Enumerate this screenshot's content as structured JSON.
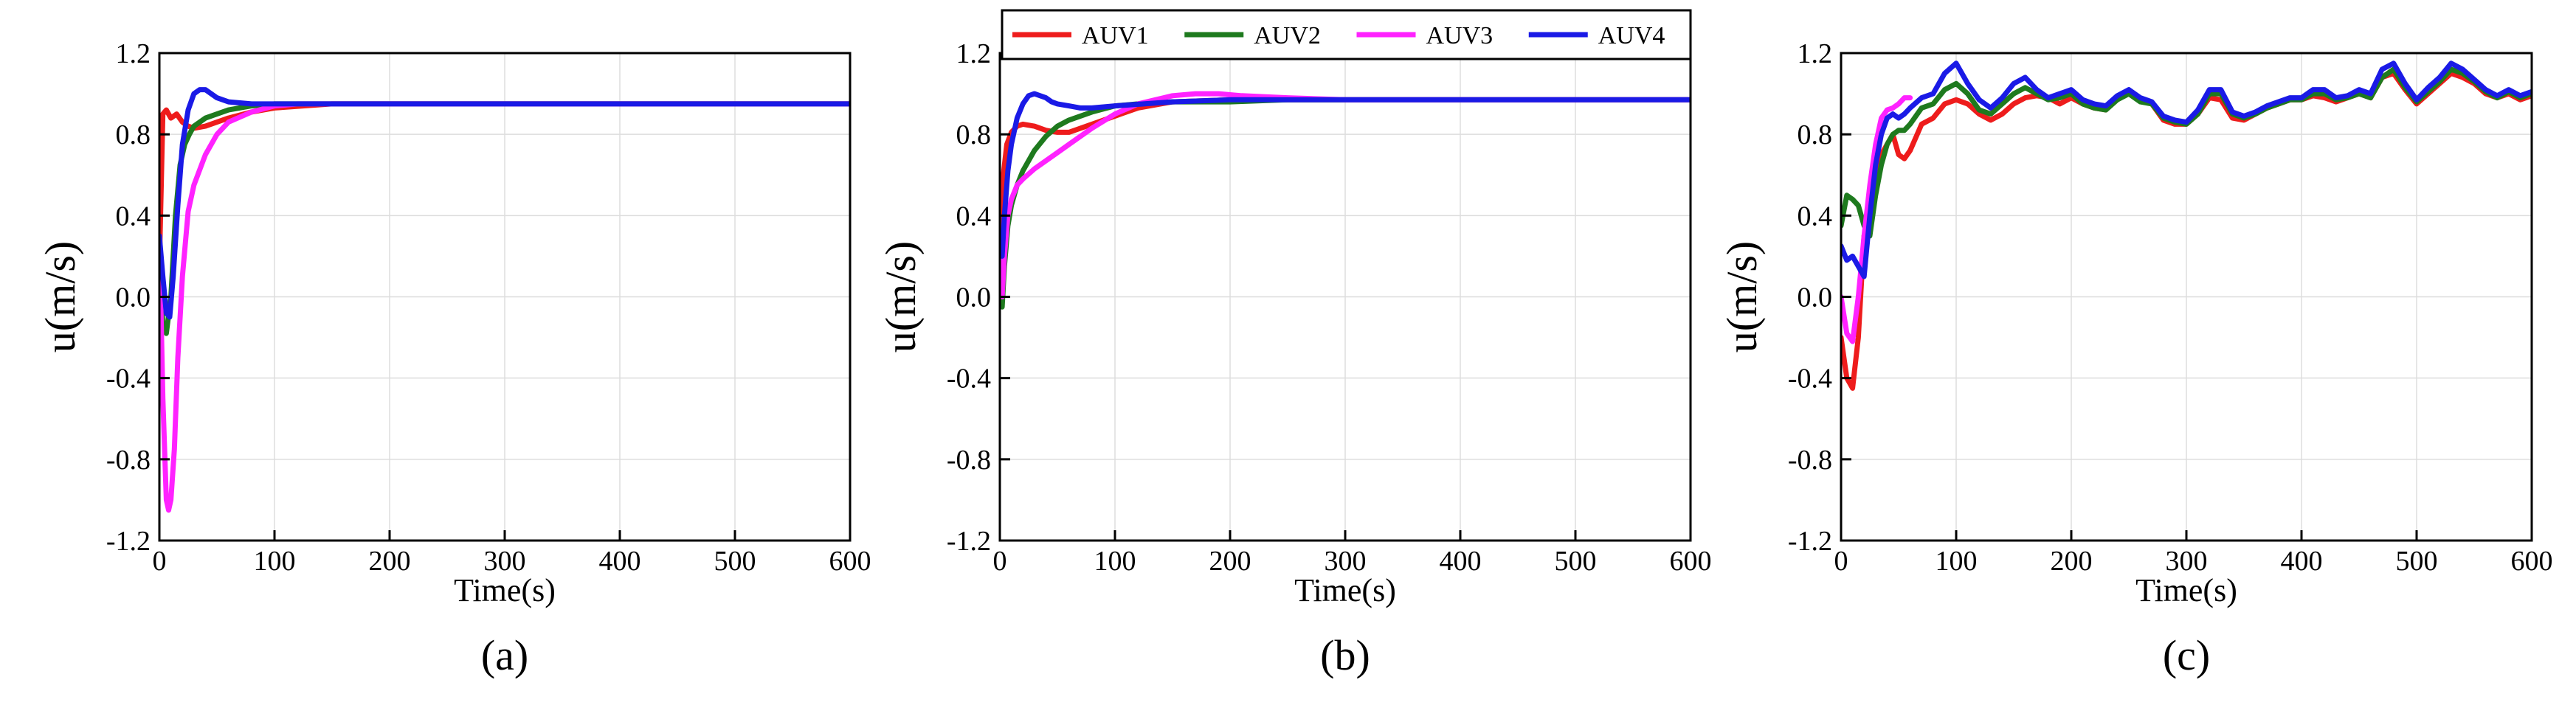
{
  "figure": {
    "series_names": [
      "AUV1",
      "AUV2",
      "AUV3",
      "AUV4"
    ],
    "series_colors": [
      "#ee1c1c",
      "#1e7a1e",
      "#ff22ff",
      "#1a1ae6"
    ]
  },
  "chart_data": [
    {
      "type": "line",
      "panel_label": "(a)",
      "xlabel": "Time(s)",
      "ylabel": "u(m/s)",
      "xlim": [
        0,
        600
      ],
      "ylim": [
        -1.2,
        1.2
      ],
      "xticks": [
        0,
        100,
        200,
        300,
        400,
        500,
        600
      ],
      "yticks": [
        -1.2,
        -0.8,
        -0.4,
        0.0,
        0.4,
        0.8,
        1.2
      ],
      "xtick_labels": [
        "0",
        "100",
        "200",
        "300",
        "400",
        "500",
        "600"
      ],
      "ytick_labels": [
        "-1.2",
        "-0.8",
        "-0.4",
        "0.0",
        "0.4",
        "0.8",
        "1.2"
      ],
      "grid": true,
      "legend": null,
      "series": [
        {
          "name": "AUV1",
          "x": [
            0,
            3,
            6,
            10,
            15,
            20,
            25,
            30,
            40,
            50,
            60,
            80,
            100,
            150,
            200,
            300,
            400,
            500,
            600
          ],
          "y": [
            0.15,
            0.9,
            0.92,
            0.88,
            0.9,
            0.86,
            0.84,
            0.83,
            0.84,
            0.86,
            0.88,
            0.91,
            0.93,
            0.95,
            0.95,
            0.95,
            0.95,
            0.95,
            0.95
          ]
        },
        {
          "name": "AUV2",
          "x": [
            0,
            3,
            6,
            10,
            14,
            18,
            22,
            26,
            30,
            40,
            50,
            60,
            80,
            100,
            150,
            200,
            300,
            400,
            500,
            600
          ],
          "y": [
            0.3,
            -0.15,
            -0.18,
            0.0,
            0.4,
            0.65,
            0.75,
            0.8,
            0.84,
            0.88,
            0.9,
            0.92,
            0.94,
            0.95,
            0.95,
            0.95,
            0.95,
            0.95,
            0.95,
            0.95
          ]
        },
        {
          "name": "AUV3",
          "x": [
            0,
            3,
            6,
            8,
            10,
            13,
            16,
            20,
            25,
            30,
            40,
            50,
            60,
            80,
            100,
            120,
            150,
            200,
            300,
            400,
            500,
            600
          ],
          "y": [
            0.3,
            -0.5,
            -1.0,
            -1.05,
            -1.0,
            -0.75,
            -0.3,
            0.1,
            0.42,
            0.55,
            0.7,
            0.8,
            0.86,
            0.91,
            0.94,
            0.95,
            0.95,
            0.95,
            0.95,
            0.95,
            0.95,
            0.95
          ]
        },
        {
          "name": "AUV4",
          "x": [
            0,
            3,
            6,
            9,
            12,
            16,
            20,
            25,
            30,
            35,
            40,
            45,
            50,
            60,
            80,
            100,
            150,
            200,
            300,
            400,
            500,
            600
          ],
          "y": [
            0.3,
            0.1,
            -0.08,
            -0.1,
            0.1,
            0.45,
            0.75,
            0.92,
            1.0,
            1.02,
            1.02,
            1.0,
            0.98,
            0.96,
            0.95,
            0.95,
            0.95,
            0.95,
            0.95,
            0.95,
            0.95,
            0.95
          ]
        }
      ]
    },
    {
      "type": "line",
      "panel_label": "(b)",
      "xlabel": "Time(s)",
      "ylabel": "u(m/s)",
      "xlim": [
        0,
        600
      ],
      "ylim": [
        -1.2,
        1.2
      ],
      "xticks": [
        0,
        100,
        200,
        300,
        400,
        500,
        600
      ],
      "yticks": [
        -1.2,
        -0.8,
        -0.4,
        0.0,
        0.4,
        0.8,
        1.2
      ],
      "xtick_labels": [
        "0",
        "100",
        "200",
        "300",
        "400",
        "500",
        "600"
      ],
      "ytick_labels": [
        "-1.2",
        "-0.8",
        "-0.4",
        "0.0",
        "0.4",
        "0.8",
        "1.2"
      ],
      "grid": true,
      "legend": "top",
      "series": [
        {
          "name": "AUV1",
          "x": [
            0,
            3,
            6,
            10,
            15,
            20,
            30,
            40,
            50,
            60,
            70,
            80,
            100,
            120,
            150,
            200,
            250,
            300,
            400,
            500,
            600
          ],
          "y": [
            0.3,
            0.6,
            0.75,
            0.81,
            0.84,
            0.85,
            0.84,
            0.82,
            0.81,
            0.81,
            0.83,
            0.85,
            0.89,
            0.93,
            0.96,
            0.97,
            0.97,
            0.97,
            0.97,
            0.97,
            0.97
          ]
        },
        {
          "name": "AUV2",
          "x": [
            0,
            2,
            4,
            7,
            10,
            15,
            20,
            30,
            40,
            50,
            60,
            80,
            100,
            120,
            150,
            200,
            250,
            300,
            400,
            500,
            600
          ],
          "y": [
            0.2,
            -0.05,
            0.15,
            0.35,
            0.45,
            0.55,
            0.62,
            0.72,
            0.79,
            0.84,
            0.87,
            0.91,
            0.94,
            0.95,
            0.96,
            0.96,
            0.97,
            0.97,
            0.97,
            0.97,
            0.97
          ]
        },
        {
          "name": "AUV3",
          "x": [
            0,
            2,
            4,
            7,
            10,
            15,
            20,
            30,
            40,
            50,
            60,
            80,
            100,
            120,
            150,
            170,
            190,
            210,
            250,
            300,
            400,
            500,
            600
          ],
          "y": [
            0.2,
            0.0,
            0.2,
            0.4,
            0.48,
            0.55,
            0.58,
            0.63,
            0.67,
            0.71,
            0.75,
            0.83,
            0.9,
            0.95,
            0.99,
            1.0,
            1.0,
            0.99,
            0.98,
            0.97,
            0.97,
            0.97,
            0.97
          ]
        },
        {
          "name": "AUV4",
          "x": [
            0,
            2,
            4,
            7,
            10,
            15,
            20,
            25,
            30,
            35,
            40,
            45,
            50,
            60,
            70,
            80,
            100,
            150,
            200,
            300,
            400,
            500,
            600
          ],
          "y": [
            0.3,
            0.2,
            0.4,
            0.62,
            0.75,
            0.88,
            0.95,
            0.99,
            1.0,
            0.99,
            0.98,
            0.96,
            0.95,
            0.94,
            0.93,
            0.93,
            0.94,
            0.96,
            0.97,
            0.97,
            0.97,
            0.97,
            0.97
          ]
        }
      ]
    },
    {
      "type": "line",
      "panel_label": "(c)",
      "xlabel": "Time(s)",
      "ylabel": "u(m/s)",
      "xlim": [
        0,
        600
      ],
      "ylim": [
        -1.2,
        1.2
      ],
      "xticks": [
        0,
        100,
        200,
        300,
        400,
        500,
        600
      ],
      "yticks": [
        -1.2,
        -0.8,
        -0.4,
        0.0,
        0.4,
        0.8,
        1.2
      ],
      "xtick_labels": [
        "0",
        "100",
        "200",
        "300",
        "400",
        "500",
        "600"
      ],
      "ytick_labels": [
        "-1.2",
        "-0.8",
        "-0.4",
        "0.0",
        "0.4",
        "0.8",
        "1.2"
      ],
      "grid": true,
      "legend": null,
      "series": [
        {
          "name": "AUV1",
          "x": [
            0,
            5,
            10,
            15,
            20,
            25,
            30,
            35,
            40,
            45,
            50,
            55,
            60,
            70,
            80,
            90,
            100,
            110,
            120,
            130,
            140,
            150,
            160,
            170,
            180,
            190,
            200,
            210,
            220,
            230,
            240,
            250,
            260,
            270,
            280,
            290,
            300,
            310,
            320,
            330,
            340,
            350,
            360,
            370,
            380,
            390,
            400,
            410,
            420,
            430,
            440,
            450,
            460,
            470,
            480,
            490,
            500,
            510,
            520,
            530,
            540,
            550,
            560,
            570,
            580,
            590,
            600
          ],
          "y": [
            -0.2,
            -0.4,
            -0.45,
            -0.2,
            0.3,
            0.35,
            0.55,
            0.7,
            0.75,
            0.8,
            0.7,
            0.68,
            0.72,
            0.85,
            0.88,
            0.95,
            0.97,
            0.95,
            0.9,
            0.87,
            0.9,
            0.95,
            0.98,
            0.99,
            0.98,
            0.95,
            0.98,
            0.95,
            0.93,
            0.92,
            0.98,
            1.0,
            0.97,
            0.95,
            0.87,
            0.85,
            0.85,
            0.9,
            0.98,
            0.97,
            0.88,
            0.87,
            0.9,
            0.93,
            0.95,
            0.97,
            0.97,
            0.99,
            0.98,
            0.96,
            0.98,
            1.0,
            0.98,
            1.08,
            1.1,
            1.02,
            0.95,
            1.0,
            1.05,
            1.1,
            1.08,
            1.05,
            1.0,
            0.98,
            1.0,
            0.97,
            0.99
          ]
        },
        {
          "name": "AUV2",
          "x": [
            0,
            5,
            10,
            15,
            20,
            25,
            30,
            35,
            40,
            45,
            50,
            55,
            60,
            70,
            80,
            90,
            100,
            110,
            120,
            130,
            140,
            150,
            160,
            170,
            180,
            190,
            200,
            210,
            220,
            230,
            240,
            250,
            260,
            270,
            280,
            290,
            300,
            310,
            320,
            330,
            340,
            350,
            360,
            370,
            380,
            390,
            400,
            410,
            420,
            430,
            440,
            450,
            460,
            470,
            480,
            490,
            500,
            510,
            520,
            530,
            540,
            550,
            560,
            570,
            580,
            590,
            600
          ],
          "y": [
            0.35,
            0.5,
            0.48,
            0.45,
            0.35,
            0.3,
            0.5,
            0.65,
            0.75,
            0.8,
            0.82,
            0.82,
            0.85,
            0.93,
            0.95,
            1.02,
            1.05,
            1.0,
            0.92,
            0.9,
            0.95,
            1.0,
            1.03,
            1.0,
            0.97,
            0.98,
            1.0,
            0.95,
            0.93,
            0.92,
            0.97,
            1.0,
            0.96,
            0.95,
            0.88,
            0.86,
            0.85,
            0.9,
            1.0,
            1.0,
            0.9,
            0.88,
            0.9,
            0.93,
            0.95,
            0.97,
            0.97,
            1.0,
            1.0,
            0.97,
            0.98,
            1.0,
            0.98,
            1.08,
            1.12,
            1.03,
            0.96,
            1.01,
            1.06,
            1.12,
            1.1,
            1.06,
            1.01,
            0.98,
            1.01,
            0.98,
            1.0
          ]
        },
        {
          "name": "AUV3",
          "x": [
            0,
            5,
            10,
            15,
            20,
            25,
            30,
            35,
            40,
            45,
            50,
            55,
            60
          ],
          "y": [
            0.0,
            -0.18,
            -0.22,
            0.0,
            0.3,
            0.55,
            0.75,
            0.88,
            0.92,
            0.93,
            0.95,
            0.98,
            0.98
          ]
        },
        {
          "name": "AUV4",
          "x": [
            0,
            5,
            10,
            15,
            20,
            25,
            30,
            35,
            40,
            45,
            50,
            55,
            60,
            70,
            80,
            90,
            100,
            110,
            120,
            130,
            140,
            150,
            160,
            170,
            180,
            190,
            200,
            210,
            220,
            230,
            240,
            250,
            260,
            270,
            280,
            290,
            300,
            310,
            320,
            330,
            340,
            350,
            360,
            370,
            380,
            390,
            400,
            410,
            420,
            430,
            440,
            450,
            460,
            470,
            480,
            490,
            500,
            510,
            520,
            530,
            540,
            550,
            560,
            570,
            580,
            590,
            600
          ],
          "y": [
            0.25,
            0.18,
            0.2,
            0.15,
            0.1,
            0.4,
            0.65,
            0.8,
            0.88,
            0.9,
            0.88,
            0.9,
            0.93,
            0.98,
            1.0,
            1.1,
            1.15,
            1.05,
            0.97,
            0.93,
            0.98,
            1.05,
            1.08,
            1.02,
            0.98,
            1.0,
            1.02,
            0.97,
            0.95,
            0.94,
            0.99,
            1.02,
            0.98,
            0.96,
            0.89,
            0.87,
            0.86,
            0.92,
            1.02,
            1.02,
            0.91,
            0.89,
            0.91,
            0.94,
            0.96,
            0.98,
            0.98,
            1.02,
            1.02,
            0.98,
            0.99,
            1.02,
            1.0,
            1.12,
            1.15,
            1.05,
            0.97,
            1.03,
            1.08,
            1.15,
            1.12,
            1.07,
            1.02,
            0.99,
            1.02,
            0.99,
            1.01
          ]
        }
      ]
    }
  ]
}
